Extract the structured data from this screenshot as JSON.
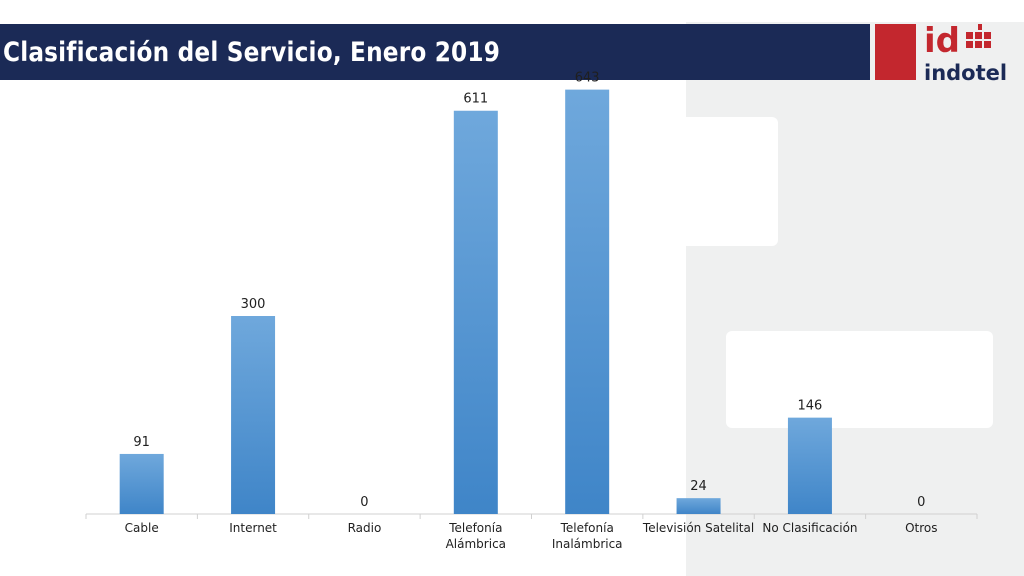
{
  "header": {
    "title": "Clasificación del Servicio, Enero 2019"
  },
  "logo": {
    "text": "indotel",
    "mark": "id",
    "accent_color": "#c3272e",
    "brand_color": "#1b2a56"
  },
  "chart_data": {
    "type": "bar",
    "title": "",
    "xlabel": "",
    "ylabel": "",
    "categories": [
      [
        "Cable"
      ],
      [
        "Internet"
      ],
      [
        "Radio"
      ],
      [
        "Telefonía",
        "Alámbrica"
      ],
      [
        "Telefonía",
        "Inalámbrica"
      ],
      [
        "Televisión Satelital"
      ],
      [
        "No Clasificación"
      ],
      [
        "Otros"
      ]
    ],
    "values": [
      91,
      300,
      0,
      611,
      643,
      24,
      146,
      0
    ],
    "ylim": [
      0,
      700
    ],
    "grid": false,
    "legend": "none",
    "bar_color": "#5b9bd5"
  }
}
